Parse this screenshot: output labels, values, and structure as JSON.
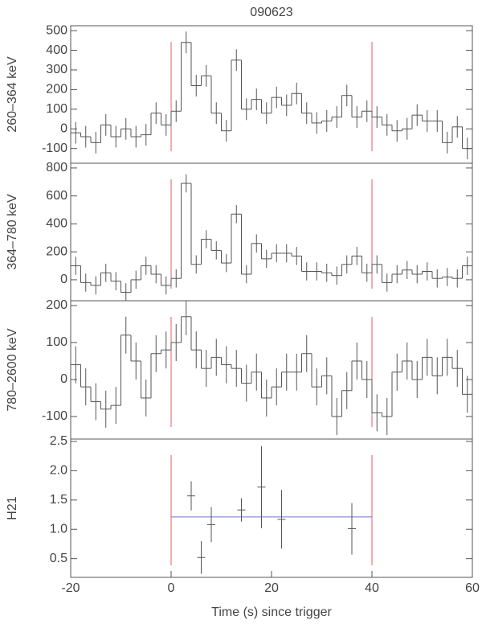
{
  "chart_data": [
    {
      "type": "histogram",
      "title": "090623",
      "ylabel": "260–364 keV",
      "color": "#555555",
      "vline_color": "#e06060",
      "bins": [
        -20,
        -18,
        -16,
        -14,
        -12,
        -10,
        -8,
        -6,
        -4,
        -2,
        0,
        2,
        4,
        6,
        8,
        10,
        12,
        14,
        16,
        18,
        20,
        22,
        24,
        26,
        28,
        30,
        32,
        34,
        36,
        38,
        40,
        42,
        44,
        46,
        48,
        50,
        52,
        54,
        56,
        58,
        60
      ],
      "values": [
        -20,
        -40,
        -70,
        20,
        -40,
        0,
        -40,
        -30,
        80,
        20,
        90,
        440,
        220,
        270,
        80,
        -10,
        350,
        100,
        150,
        80,
        160,
        120,
        180,
        80,
        30,
        40,
        60,
        170,
        60,
        90,
        60,
        20,
        -10,
        0,
        70,
        40,
        40,
        -70,
        10,
        -100
      ],
      "errors": [
        55,
        55,
        55,
        55,
        55,
        55,
        55,
        55,
        55,
        55,
        55,
        55,
        55,
        55,
        55,
        55,
        55,
        55,
        55,
        55,
        55,
        55,
        55,
        55,
        55,
        55,
        55,
        55,
        55,
        55,
        55,
        55,
        55,
        55,
        55,
        55,
        55,
        55,
        55,
        55
      ],
      "vlines": [
        0,
        40
      ],
      "xlim": [
        -20,
        60
      ],
      "ylim": [
        -175,
        525
      ],
      "yticks": [
        -100,
        0,
        100,
        200,
        300,
        400,
        500
      ]
    },
    {
      "type": "histogram",
      "ylabel": "364–780 keV",
      "color": "#555555",
      "vline_color": "#e06060",
      "bins": [
        -20,
        -18,
        -16,
        -14,
        -12,
        -10,
        -8,
        -6,
        -4,
        -2,
        0,
        2,
        4,
        6,
        8,
        10,
        12,
        14,
        16,
        18,
        20,
        22,
        24,
        26,
        28,
        30,
        32,
        34,
        36,
        38,
        40,
        42,
        44,
        46,
        48,
        50,
        52,
        54,
        56,
        58,
        60
      ],
      "values": [
        100,
        -20,
        -40,
        50,
        -10,
        -90,
        0,
        100,
        40,
        -40,
        10,
        690,
        110,
        290,
        210,
        120,
        470,
        40,
        260,
        150,
        190,
        190,
        170,
        60,
        60,
        50,
        30,
        110,
        170,
        50,
        110,
        -20,
        40,
        70,
        40,
        60,
        10,
        20,
        10,
        100
      ],
      "errors": [
        65,
        65,
        65,
        65,
        65,
        65,
        65,
        65,
        65,
        65,
        65,
        65,
        65,
        65,
        65,
        65,
        65,
        65,
        65,
        65,
        65,
        65,
        65,
        65,
        65,
        65,
        65,
        65,
        65,
        65,
        65,
        65,
        65,
        65,
        65,
        65,
        65,
        65,
        65,
        65
      ],
      "vlines": [
        0,
        40
      ],
      "xlim": [
        -20,
        60
      ],
      "ylim": [
        -150,
        834
      ],
      "yticks": [
        0,
        200,
        400,
        600,
        800
      ]
    },
    {
      "type": "histogram",
      "ylabel": "780–2600 keV",
      "color": "#555555",
      "vline_color": "#e06060",
      "bins": [
        -20,
        -18,
        -16,
        -14,
        -12,
        -10,
        -8,
        -6,
        -4,
        -2,
        0,
        2,
        4,
        6,
        8,
        10,
        12,
        14,
        16,
        18,
        20,
        22,
        24,
        26,
        28,
        30,
        32,
        34,
        36,
        38,
        40,
        42,
        44,
        46,
        48,
        50,
        52,
        54,
        56,
        58,
        60
      ],
      "values": [
        40,
        -20,
        -60,
        -80,
        -70,
        120,
        50,
        -50,
        70,
        80,
        100,
        170,
        80,
        30,
        60,
        40,
        30,
        -10,
        20,
        -50,
        -20,
        20,
        20,
        70,
        -20,
        10,
        -100,
        -30,
        50,
        0,
        -90,
        -100,
        20,
        50,
        0,
        60,
        10,
        60,
        30,
        -40
      ],
      "errors": [
        50,
        50,
        50,
        50,
        50,
        50,
        50,
        50,
        50,
        50,
        50,
        50,
        50,
        50,
        50,
        50,
        50,
        50,
        50,
        50,
        50,
        50,
        50,
        50,
        50,
        50,
        50,
        50,
        50,
        50,
        50,
        50,
        50,
        50,
        50,
        50,
        50,
        50,
        50,
        50
      ],
      "vlines": [
        0,
        40
      ],
      "xlim": [
        -20,
        60
      ],
      "ylim": [
        -161,
        213
      ],
      "yticks": [
        -100,
        0,
        100,
        200
      ]
    },
    {
      "type": "scatter",
      "ylabel": "H21",
      "xlabel": "Time (s) since trigger",
      "color": "#555555",
      "vline_color": "#e06060",
      "hline_color": "#7070d0",
      "x": [
        4,
        6,
        8,
        14,
        18,
        22,
        36
      ],
      "values": [
        1.57,
        0.52,
        1.08,
        1.33,
        1.72,
        1.17,
        1.01
      ],
      "errors": [
        0.25,
        0.28,
        0.3,
        0.2,
        0.7,
        0.5,
        0.44
      ],
      "hline": {
        "y": 1.21,
        "x": [
          0,
          40
        ]
      },
      "vlines": [
        0,
        40
      ],
      "xlim": [
        -20,
        60
      ],
      "xticks": [
        -20,
        0,
        20,
        40,
        60
      ],
      "ylim": [
        0.18,
        2.54
      ],
      "yticks": [
        {
          "value": 0.5,
          "label": "0.5"
        },
        {
          "value": 1.0,
          "label": "1.0"
        },
        1.5,
        {
          "value": 2.0,
          "label": "2.0"
        },
        2.5
      ]
    }
  ]
}
